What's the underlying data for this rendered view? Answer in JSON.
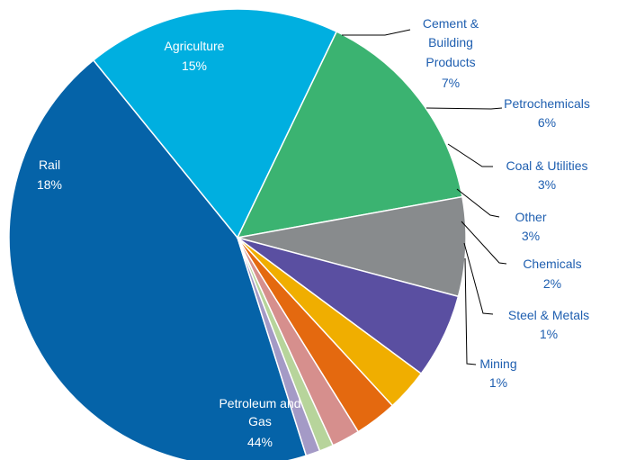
{
  "chart_data": {
    "type": "pie",
    "title": "",
    "slices": [
      {
        "label": "Petroleum and Gas",
        "value": 44,
        "value_label": "44%",
        "color": "#0563a8"
      },
      {
        "label": "Rail",
        "value": 18,
        "value_label": "18%",
        "color": "#00afe0"
      },
      {
        "label": "Agriculture",
        "value": 15,
        "value_label": "15%",
        "color": "#3bb371"
      },
      {
        "label": "Cement & Building Products",
        "value": 7,
        "value_label": "7%",
        "color": "#888b8d"
      },
      {
        "label": "Petrochemicals",
        "value": 6,
        "value_label": "6%",
        "color": "#5a4fa1"
      },
      {
        "label": "Coal & Utilities",
        "value": 3,
        "value_label": "3%",
        "color": "#f0ae00"
      },
      {
        "label": "Other",
        "value": 3,
        "value_label": "3%",
        "color": "#e4690f"
      },
      {
        "label": "Chemicals",
        "value": 2,
        "value_label": "2%",
        "color": "#d68f8d"
      },
      {
        "label": "Steel & Metals",
        "value": 1,
        "value_label": "1%",
        "color": "#b7d49b"
      },
      {
        "label": "Mining",
        "value": 1,
        "value_label": "1%",
        "color": "#a49ac6"
      }
    ],
    "legend": "none"
  }
}
